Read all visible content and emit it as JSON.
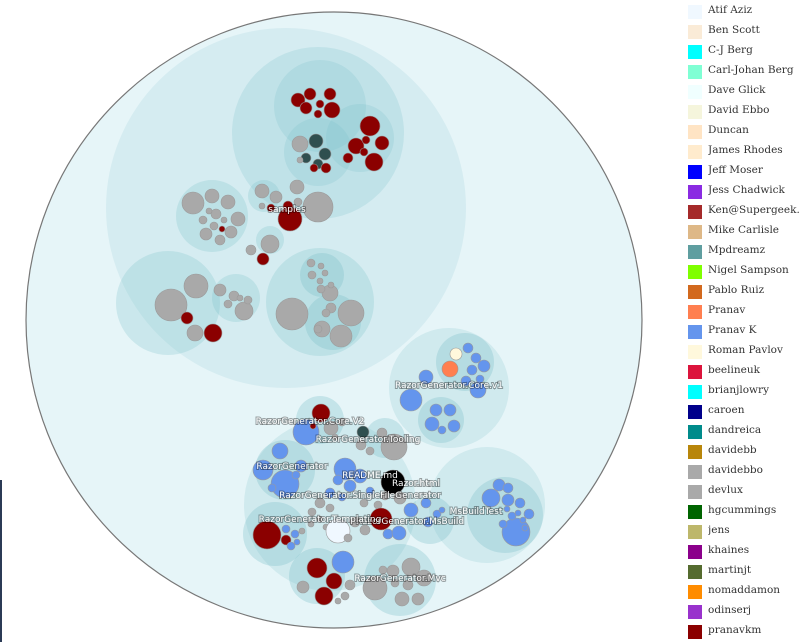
{
  "chart_data": {
    "type": "circle-pack",
    "title": "",
    "labels": [
      {
        "text": "samples"
      },
      {
        "text": "RazorGenerator.Core.v1"
      },
      {
        "text": "RazorGenerator.Core.V2"
      },
      {
        "text": "RazorGenerator.Tooling"
      },
      {
        "text": "RazorGenerator"
      },
      {
        "text": "README.md"
      },
      {
        "text": "RazorGenerator.SingleFileGenerator"
      },
      {
        "text": "Razor.html"
      },
      {
        "text": "RazorGenerator.MsBuild"
      },
      {
        "text": "MsBuildTest"
      },
      {
        "text": "RazorGenerator.Mvc"
      },
      {
        "text": "RazorGenerator.Templating"
      }
    ]
  },
  "legend": [
    {
      "name": "Atif Aziz",
      "color": "#f0f8ff"
    },
    {
      "name": "Ben Scott",
      "color": "#faebd7"
    },
    {
      "name": "C-J Berg",
      "color": "#00ffff"
    },
    {
      "name": "Carl-Johan Berg",
      "color": "#7fffd4"
    },
    {
      "name": "Dave Glick",
      "color": "#f0ffff"
    },
    {
      "name": "David Ebbo",
      "color": "#f5f5dc"
    },
    {
      "name": "Duncan",
      "color": "#ffe4c4"
    },
    {
      "name": "James Rhodes",
      "color": "#ffebcd"
    },
    {
      "name": "Jeff Moser",
      "color": "#0000ff"
    },
    {
      "name": "Jess Chadwick",
      "color": "#8a2be2"
    },
    {
      "name": "Ken@Supergeek.qu",
      "color": "#a52a2a"
    },
    {
      "name": "Mike Carlisle",
      "color": "#deb887"
    },
    {
      "name": "Mpdreamz",
      "color": "#5f9ea0"
    },
    {
      "name": "Nigel Sampson",
      "color": "#7fff00"
    },
    {
      "name": "Pablo Ruiz",
      "color": "#d2691e"
    },
    {
      "name": "Pranav",
      "color": "#ff7f50"
    },
    {
      "name": "Pranav K",
      "color": "#6495ed"
    },
    {
      "name": "Roman Pavlov",
      "color": "#fff8dc"
    },
    {
      "name": "beelineuk",
      "color": "#dc143c"
    },
    {
      "name": "brianjlowry",
      "color": "#00ffff"
    },
    {
      "name": "caroen",
      "color": "#00008b"
    },
    {
      "name": "dandreica",
      "color": "#008b8b"
    },
    {
      "name": "davidebb",
      "color": "#b8860b"
    },
    {
      "name": "davidebbo",
      "color": "#a9a9a9"
    },
    {
      "name": "devlux",
      "color": "#a9a9a9"
    },
    {
      "name": "hgcummings",
      "color": "#006400"
    },
    {
      "name": "jens",
      "color": "#bdb76b"
    },
    {
      "name": "khaines",
      "color": "#8b008b"
    },
    {
      "name": "martinjt",
      "color": "#556b2f"
    },
    {
      "name": "nomaddamon",
      "color": "#ff8c00"
    },
    {
      "name": "odinserj",
      "color": "#9932cc"
    },
    {
      "name": "pranavkm",
      "color": "#8b0000"
    }
  ]
}
